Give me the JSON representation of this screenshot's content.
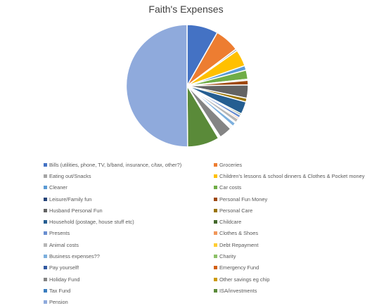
{
  "chart_data": {
    "type": "pie",
    "title": "Faith's Expenses",
    "legend_position": "bottom",
    "slices": [
      {
        "label": "Bills (utilities, phone, TV, b/band, insurance, c/tax, other?)",
        "value": 8.2,
        "color": "#4472C4"
      },
      {
        "label": "Groceries",
        "value": 6.5,
        "color": "#ED7D31"
      },
      {
        "label": "Eating out/Snacks",
        "value": 0.5,
        "color": "#A5A5A5"
      },
      {
        "label": "Children's lessons & school dinners & Clothes & Pocket money",
        "value": 4.4,
        "color": "#FFC000"
      },
      {
        "label": "Cleaner",
        "value": 1.2,
        "color": "#5B9BD5"
      },
      {
        "label": "Car costs",
        "value": 2.4,
        "color": "#70AD47"
      },
      {
        "label": "Leisure/Family fun",
        "value": 0.3,
        "color": "#264478"
      },
      {
        "label": "Personal Fun Money",
        "value": 1.2,
        "color": "#9E480E"
      },
      {
        "label": "Husband Personal Fun",
        "value": 3.5,
        "color": "#636363"
      },
      {
        "label": "Personal Care",
        "value": 1.0,
        "color": "#997300"
      },
      {
        "label": "Household (postage, house stuff etc)",
        "value": 3.3,
        "color": "#255E91"
      },
      {
        "label": "Childcare",
        "value": 0.4,
        "color": "#43682B"
      },
      {
        "label": "Presents",
        "value": 0.8,
        "color": "#698ED0"
      },
      {
        "label": "Clothes & Shoes",
        "value": 0.4,
        "color": "#F1975A"
      },
      {
        "label": "Animal costs",
        "value": 1.0,
        "color": "#B7B7B7"
      },
      {
        "label": "Debt Repayment",
        "value": 0.3,
        "color": "#FFCD33"
      },
      {
        "label": "Business expenses??",
        "value": 1.0,
        "color": "#7CAFDD"
      },
      {
        "label": "Charity",
        "value": 0.3,
        "color": "#8CC168"
      },
      {
        "label": "Pay yourself!",
        "value": 0.3,
        "color": "#335AA1"
      },
      {
        "label": "Emergency Fund",
        "value": 0.3,
        "color": "#D26012"
      },
      {
        "label": "Holiday Fund",
        "value": 3.4,
        "color": "#848484"
      },
      {
        "label": "Other savings eg chip",
        "value": 0.3,
        "color": "#CC9A00"
      },
      {
        "label": "Tax Fund",
        "value": 0.3,
        "color": "#3A7DBF"
      },
      {
        "label": "ISA/investments",
        "value": 8.4,
        "color": "#5A8A39"
      },
      {
        "label": "Pension",
        "value": 50.0,
        "color": "#8FAADC"
      }
    ]
  }
}
